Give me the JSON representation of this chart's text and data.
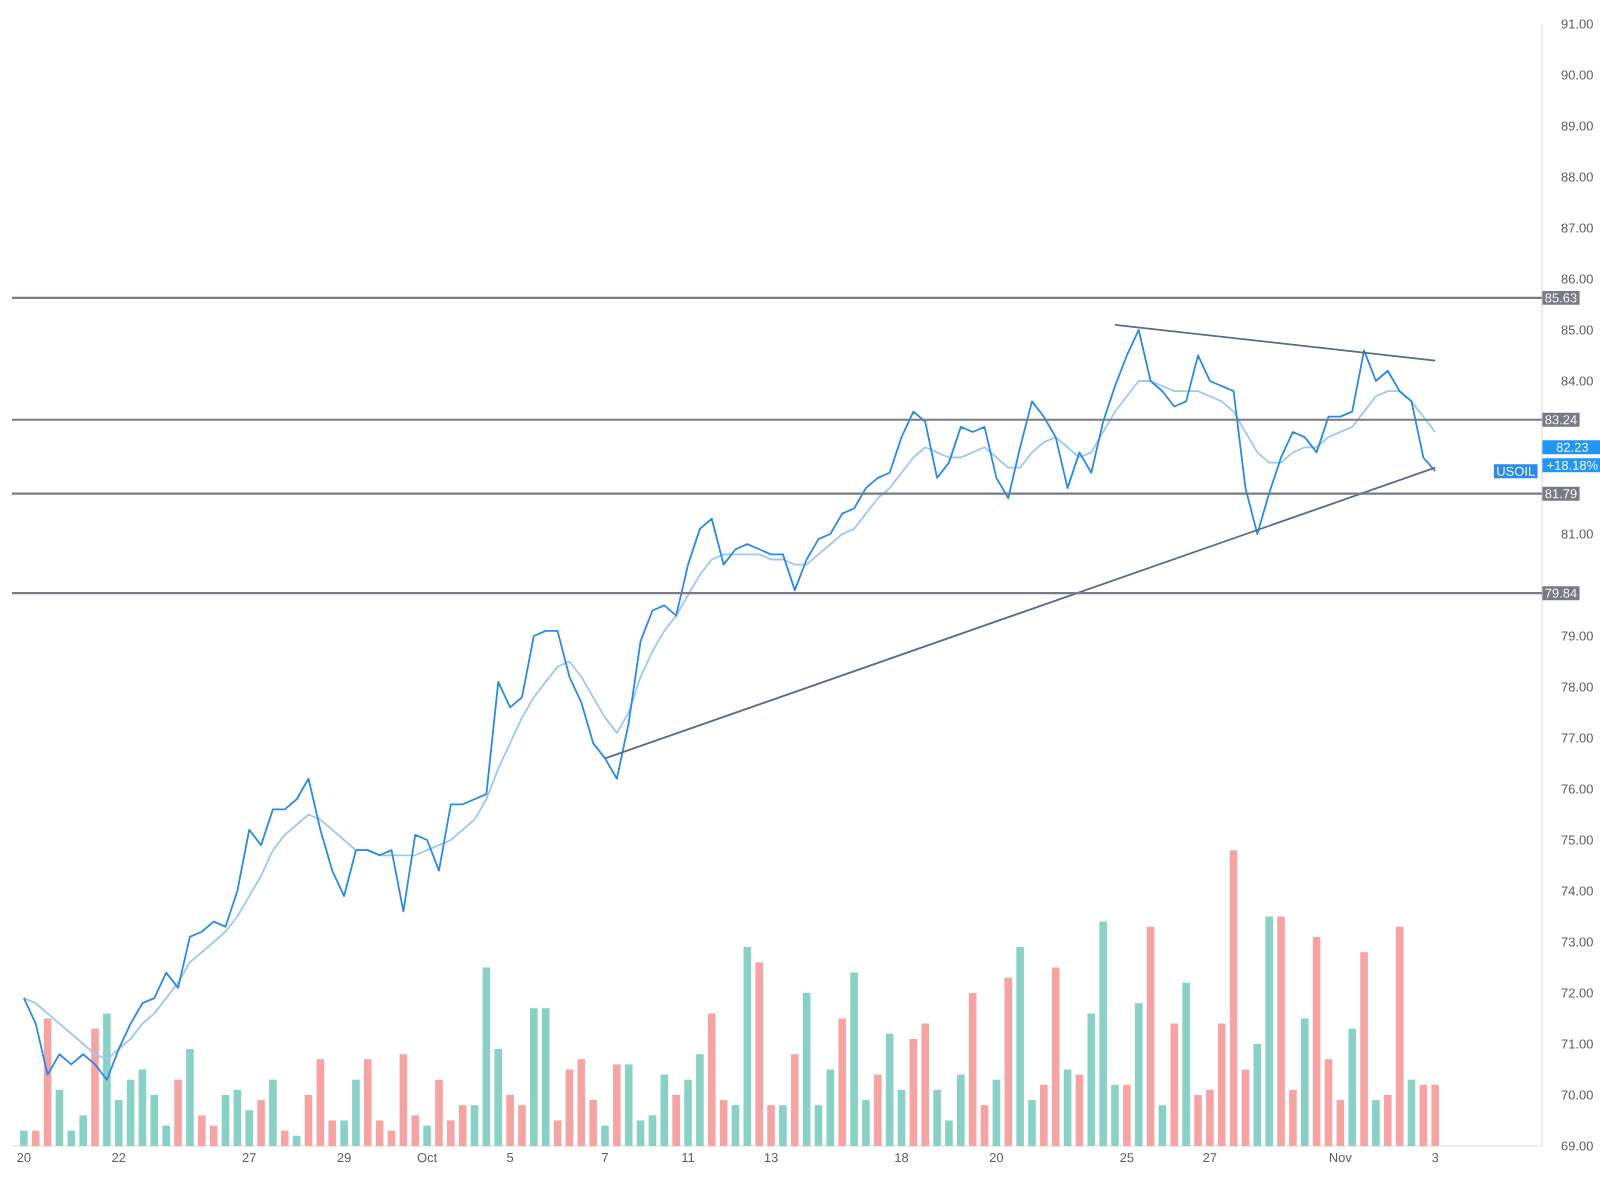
{
  "chart_data": {
    "type": "line",
    "categories": [
      "20",
      null,
      null,
      null,
      null,
      null,
      null,
      null,
      "22",
      null,
      null,
      null,
      null,
      null,
      null,
      null,
      null,
      null,
      null,
      "27",
      null,
      null,
      null,
      null,
      null,
      null,
      null,
      "29",
      null,
      null,
      null,
      null,
      null,
      null,
      "Oct",
      null,
      null,
      null,
      null,
      null,
      null,
      "5",
      null,
      null,
      null,
      null,
      null,
      null,
      null,
      "7",
      null,
      null,
      null,
      null,
      null,
      null,
      "11",
      null,
      null,
      null,
      null,
      null,
      null,
      "13",
      null,
      null,
      null,
      null,
      null,
      null,
      null,
      null,
      null,
      null,
      "18",
      null,
      null,
      null,
      null,
      null,
      null,
      null,
      "20",
      null,
      null,
      null,
      null,
      null,
      null,
      null,
      null,
      null,
      null,
      "25",
      null,
      null,
      null,
      null,
      null,
      null,
      "27",
      null,
      null,
      null,
      null,
      null,
      null,
      null,
      null,
      null,
      null,
      "Nov",
      null,
      null,
      null,
      null,
      null,
      null,
      null,
      "3"
    ],
    "series": [
      {
        "type": "bar",
        "colors": [
          "#89d0c5",
          "#f5a3a3",
          "#f5a3a3",
          "#89d0c5",
          "#89d0c5",
          "#89d0c5",
          "#f5a3a3",
          "#89d0c5",
          "#89d0c5",
          "#89d0c5",
          "#89d0c5",
          "#89d0c5",
          "#89d0c5",
          "#f5a3a3",
          "#89d0c5",
          "#f5a3a3",
          "#f5a3a3",
          "#89d0c5",
          "#89d0c5",
          "#89d0c5",
          "#f5a3a3",
          "#89d0c5",
          "#f5a3a3",
          "#89d0c5",
          "#f5a3a3",
          "#f5a3a3",
          "#f5a3a3",
          "#89d0c5",
          "#89d0c5",
          "#f5a3a3",
          "#f5a3a3",
          "#f5a3a3",
          "#f5a3a3",
          "#f5a3a3",
          "#89d0c5",
          "#f5a3a3",
          "#f5a3a3",
          "#f5a3a3",
          "#89d0c5",
          "#89d0c5",
          "#89d0c5",
          "#f5a3a3",
          "#f5a3a3",
          "#89d0c5",
          "#89d0c5",
          "#f5a3a3",
          "#f5a3a3",
          "#f5a3a3",
          "#f5a3a3",
          "#89d0c5",
          "#f5a3a3",
          "#89d0c5",
          "#89d0c5",
          "#89d0c5",
          "#89d0c5",
          "#f5a3a3",
          "#89d0c5",
          "#89d0c5",
          "#f5a3a3",
          "#f5a3a3",
          "#89d0c5",
          "#89d0c5",
          "#f5a3a3",
          "#f5a3a3",
          "#89d0c5",
          "#f5a3a3",
          "#89d0c5",
          "#89d0c5",
          "#89d0c5",
          "#f5a3a3",
          "#89d0c5",
          "#89d0c5",
          "#f5a3a3",
          "#89d0c5",
          "#89d0c5",
          "#f5a3a3",
          "#f5a3a3",
          "#89d0c5",
          "#89d0c5",
          "#89d0c5",
          "#f5a3a3",
          "#f5a3a3",
          "#89d0c5",
          "#f5a3a3",
          "#89d0c5",
          "#89d0c5",
          "#f5a3a3",
          "#f5a3a3",
          "#89d0c5",
          "#f5a3a3",
          "#89d0c5",
          "#89d0c5",
          "#89d0c5",
          "#f5a3a3",
          "#89d0c5",
          "#f5a3a3",
          "#89d0c5",
          "#f5a3a3",
          "#89d0c5",
          "#f5a3a3",
          "#f5a3a3",
          "#f5a3a3",
          "#f5a3a3",
          "#f5a3a3",
          "#89d0c5",
          "#89d0c5",
          "#f5a3a3",
          "#f5a3a3",
          "#89d0c5",
          "#f5a3a3",
          "#f5a3a3",
          "#f5a3a3",
          "#89d0c5",
          "#f5a3a3",
          "#89d0c5",
          "#f5a3a3",
          "#f5a3a3",
          "#89d0c5",
          "#f5a3a3",
          "#f5a3a3"
        ],
        "values": [
          69.3,
          69.3,
          71.5,
          70.1,
          69.3,
          69.6,
          71.3,
          71.6,
          69.9,
          70.3,
          70.5,
          70.0,
          69.4,
          70.3,
          70.9,
          69.6,
          69.4,
          70.0,
          70.1,
          69.7,
          69.9,
          70.3,
          69.3,
          69.2,
          70.0,
          70.7,
          69.5,
          69.5,
          70.3,
          70.7,
          69.5,
          69.3,
          70.8,
          69.6,
          69.4,
          70.3,
          69.5,
          69.8,
          69.8,
          72.5,
          70.9,
          70.0,
          69.8,
          71.7,
          71.7,
          69.5,
          70.5,
          70.7,
          69.9,
          69.4,
          70.6,
          70.6,
          69.5,
          69.6,
          70.4,
          70.0,
          70.3,
          70.8,
          71.6,
          69.9,
          69.8,
          72.9,
          72.6,
          69.8,
          69.8,
          70.8,
          72.0,
          69.8,
          70.5,
          71.5,
          72.4,
          69.9,
          70.4,
          71.2,
          70.1,
          71.1,
          71.4,
          70.1,
          69.5,
          70.4,
          72.0,
          69.8,
          70.3,
          72.3,
          72.9,
          69.9,
          70.2,
          72.5,
          70.5,
          70.4,
          71.6,
          73.4,
          70.2,
          70.2,
          71.8,
          73.3,
          69.8,
          71.4,
          72.2,
          70.0,
          70.1,
          71.4,
          74.8,
          70.5,
          71.0,
          73.5,
          73.5,
          70.1,
          71.5,
          73.1,
          70.7,
          69.9,
          71.3,
          72.8,
          69.9,
          70.0,
          73.3,
          70.3,
          70.2,
          70.2
        ]
      },
      {
        "color": "#9cc9ee",
        "values": [
          71.9,
          71.8,
          71.6,
          71.4,
          71.2,
          71.0,
          70.8,
          70.7,
          70.9,
          71.1,
          71.4,
          71.6,
          71.9,
          72.2,
          72.6,
          72.8,
          73.0,
          73.2,
          73.5,
          73.9,
          74.3,
          74.8,
          75.1,
          75.3,
          75.5,
          75.4,
          75.2,
          75.0,
          74.8,
          74.8,
          74.7,
          74.7,
          74.7,
          74.7,
          74.8,
          74.9,
          75.0,
          75.2,
          75.4,
          75.8,
          76.4,
          76.9,
          77.4,
          77.8,
          78.1,
          78.4,
          78.5,
          78.2,
          77.8,
          77.4,
          77.1,
          77.5,
          78.2,
          78.7,
          79.1,
          79.4,
          79.8,
          80.2,
          80.5,
          80.6,
          80.6,
          80.6,
          80.6,
          80.5,
          80.5,
          80.4,
          80.4,
          80.6,
          80.8,
          81.0,
          81.1,
          81.4,
          81.7,
          81.9,
          82.2,
          82.5,
          82.7,
          82.6,
          82.5,
          82.5,
          82.6,
          82.7,
          82.5,
          82.3,
          82.3,
          82.6,
          82.8,
          82.9,
          82.7,
          82.5,
          82.6,
          83.0,
          83.4,
          83.7,
          84.0,
          84.0,
          83.9,
          83.8,
          83.8,
          83.8,
          83.7,
          83.6,
          83.4,
          83.0,
          82.6,
          82.4,
          82.4,
          82.6,
          82.7,
          82.7,
          82.9,
          83.0,
          83.1,
          83.4,
          83.7,
          83.8,
          83.8,
          83.6,
          83.3,
          83.0
        ]
      },
      {
        "name": "USOIL",
        "color": "#2a8ae6",
        "values": [
          71.9,
          71.4,
          70.4,
          70.8,
          70.6,
          70.8,
          70.6,
          70.3,
          70.9,
          71.4,
          71.8,
          71.9,
          72.4,
          72.1,
          73.1,
          73.2,
          73.4,
          73.3,
          74.0,
          75.2,
          74.9,
          75.6,
          75.6,
          75.8,
          76.2,
          75.2,
          74.4,
          73.9,
          74.8,
          74.8,
          74.7,
          74.8,
          73.6,
          75.1,
          75.0,
          74.4,
          75.7,
          75.7,
          75.8,
          75.9,
          78.1,
          77.6,
          77.8,
          79.0,
          79.1,
          79.1,
          78.2,
          77.7,
          76.9,
          76.6,
          76.2,
          77.3,
          78.9,
          79.5,
          79.6,
          79.4,
          80.4,
          81.1,
          81.3,
          80.4,
          80.7,
          80.8,
          80.7,
          80.6,
          80.6,
          79.9,
          80.5,
          80.9,
          81.0,
          81.4,
          81.5,
          81.9,
          82.1,
          82.2,
          82.9,
          83.4,
          83.2,
          82.1,
          82.4,
          83.1,
          83.0,
          83.1,
          82.1,
          81.7,
          82.7,
          83.6,
          83.3,
          82.9,
          81.9,
          82.6,
          82.2,
          83.2,
          83.9,
          84.5,
          85.0,
          84.0,
          83.8,
          83.5,
          83.6,
          84.5,
          84.0,
          83.9,
          83.8,
          81.9,
          81.0,
          81.8,
          82.5,
          83.0,
          82.9,
          82.6,
          83.3,
          83.3,
          83.4,
          84.6,
          84.0,
          84.2,
          83.8,
          83.6,
          82.5,
          82.23
        ]
      },
      {
        "type": "line",
        "color": "#5a6a8c",
        "values": [
          null,
          null,
          null,
          null,
          null,
          null,
          null,
          null,
          null,
          null,
          null,
          null,
          null,
          null,
          null,
          null,
          null,
          null,
          null,
          null,
          null,
          null,
          null,
          null,
          null,
          null,
          null,
          null,
          null,
          null,
          null,
          null,
          null,
          null,
          null,
          null,
          null,
          null,
          null,
          null,
          null,
          null,
          null,
          null,
          null,
          null,
          null,
          null,
          null,
          76.6,
          null,
          null,
          null,
          null,
          null,
          null,
          null,
          null,
          null,
          null,
          null,
          null,
          null,
          null,
          null,
          null,
          null,
          null,
          null,
          null,
          null,
          null,
          null,
          null,
          null,
          null,
          null,
          null,
          null,
          null,
          null,
          null,
          null,
          null,
          null,
          null,
          null,
          null,
          null,
          null,
          null,
          null,
          null,
          null,
          null,
          null,
          null,
          null,
          null,
          null,
          null,
          null,
          null,
          null,
          null,
          null,
          null,
          null,
          null,
          null,
          null,
          null,
          null,
          null,
          null,
          null,
          null,
          null,
          null,
          82.3
        ]
      },
      {
        "type": "line",
        "color": "#5a6a8c",
        "values": [
          null,
          null,
          null,
          null,
          null,
          null,
          null,
          null,
          null,
          null,
          null,
          null,
          null,
          null,
          null,
          null,
          null,
          null,
          null,
          null,
          null,
          null,
          null,
          null,
          null,
          null,
          null,
          null,
          null,
          null,
          null,
          null,
          null,
          null,
          null,
          null,
          null,
          null,
          null,
          null,
          null,
          null,
          null,
          null,
          null,
          null,
          null,
          null,
          null,
          null,
          null,
          null,
          null,
          null,
          null,
          null,
          null,
          null,
          null,
          null,
          null,
          null,
          null,
          null,
          null,
          null,
          null,
          null,
          null,
          null,
          null,
          null,
          null,
          null,
          null,
          null,
          null,
          null,
          null,
          null,
          null,
          null,
          null,
          null,
          null,
          null,
          null,
          null,
          null,
          null,
          null,
          null,
          85.1,
          null,
          null,
          null,
          null,
          null,
          null,
          null,
          null,
          null,
          null,
          null,
          null,
          null,
          null,
          null,
          null,
          null,
          null,
          null,
          null,
          null,
          null,
          null,
          null,
          null,
          null,
          84.4
        ]
      }
    ],
    "ylim": [
      69,
      91
    ],
    "yticks": [
      {
        "value": 69,
        "label": "69.00"
      },
      {
        "value": 70,
        "label": "70.00"
      },
      {
        "value": 71,
        "label": "71.00"
      },
      {
        "value": 72,
        "label": "72.00"
      },
      {
        "value": 73,
        "label": "73.00"
      },
      {
        "value": 74,
        "label": "74.00"
      },
      {
        "value": 75,
        "label": "75.00"
      },
      {
        "value": 76,
        "label": "76.00"
      },
      {
        "value": 77,
        "label": "77.00"
      },
      {
        "value": 78,
        "label": "78.00"
      },
      {
        "value": 79,
        "label": "79.00"
      },
      {
        "value": 81,
        "label": "81.00"
      },
      {
        "value": 84,
        "label": "84.00"
      },
      {
        "value": 85,
        "label": "85.00"
      },
      {
        "value": 86,
        "label": "86.00"
      },
      {
        "value": 87,
        "label": "87.00"
      },
      {
        "value": 88,
        "label": "88.00"
      },
      {
        "value": 89,
        "label": "89.00"
      },
      {
        "value": 90,
        "label": "90.00"
      },
      {
        "value": 91,
        "label": "91.00"
      }
    ],
    "ref_lines": [
      {
        "axis": "y",
        "value": 85.63,
        "label": "85.63",
        "color": "#787b86"
      },
      {
        "axis": "y",
        "value": 83.24,
        "label": "83.24",
        "color": "#787b86"
      },
      {
        "axis": "y",
        "value": 81.79,
        "label": "81.79",
        "color": "#787b86"
      },
      {
        "axis": "y",
        "value": 79.84,
        "label": "79.84",
        "color": "#787b86"
      }
    ],
    "annotations": [
      "82.23",
      "+18.18%"
    ],
    "legend": "right",
    "marker": "none",
    "grid": false
  }
}
